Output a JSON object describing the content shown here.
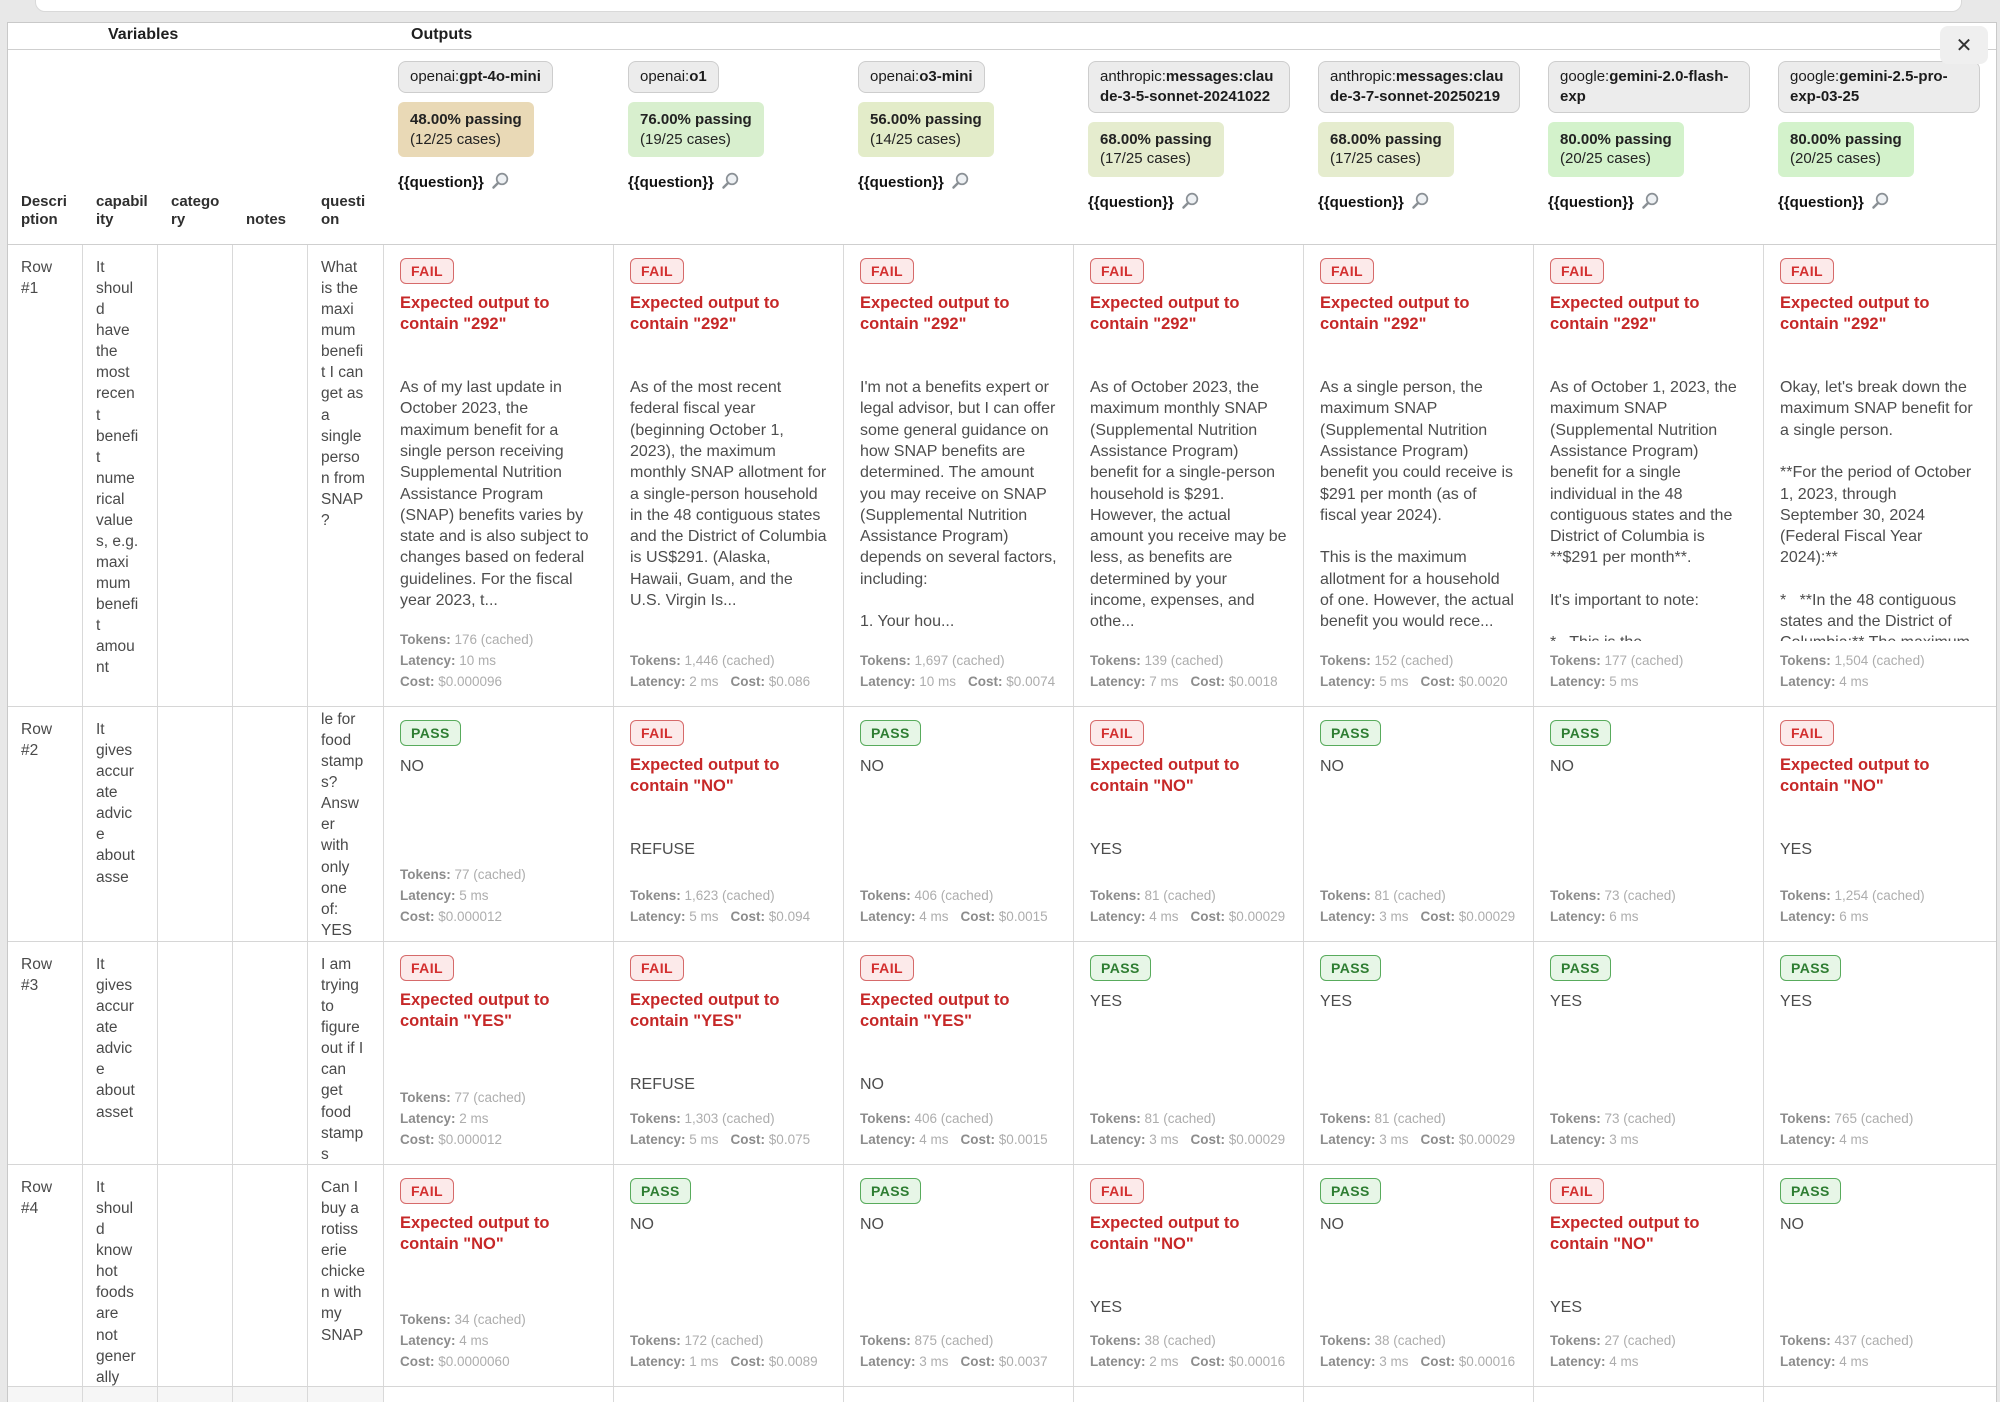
{
  "header": {
    "variables_label": "Variables",
    "outputs_label": "Outputs",
    "close_label": "✕",
    "variable_columns": [
      "Description",
      "capability",
      "category",
      "notes",
      "question"
    ],
    "question_var_label": "{{question}}",
    "search_icon": "magnifier",
    "models": [
      {
        "provider": "openai:",
        "name": "gpt-4o-mini",
        "pass_pct": "48.00% passing",
        "cases": "(12/25 cases)",
        "badge_bg": "#e9d9b6"
      },
      {
        "provider": "openai:",
        "name": "o1",
        "pass_pct": "76.00% passing",
        "cases": "(19/25 cases)",
        "badge_bg": "#d8efce"
      },
      {
        "provider": "openai:",
        "name": "o3-mini",
        "pass_pct": "56.00% passing",
        "cases": "(14/25 cases)",
        "badge_bg": "#e3ecc9"
      },
      {
        "provider": "anthropic:",
        "name": "messages:claude-3-5-sonnet-20241022",
        "pass_pct": "68.00% passing",
        "cases": "(17/25 cases)",
        "badge_bg": "#e5ecce"
      },
      {
        "provider": "anthropic:",
        "name": "messages:claude-3-7-sonnet-20250219",
        "pass_pct": "68.00% passing",
        "cases": "(17/25 cases)",
        "badge_bg": "#e5ecce"
      },
      {
        "provider": "google:",
        "name": "gemini-2.0-flash-exp",
        "pass_pct": "80.00% passing",
        "cases": "(20/25 cases)",
        "badge_bg": "#d3f2cb"
      },
      {
        "provider": "google:",
        "name": "gemini-2.5-pro-exp-03-25",
        "pass_pct": "80.00% passing",
        "cases": "(20/25 cases)",
        "badge_bg": "#d3f2cb"
      }
    ]
  },
  "colors": {
    "fail_text": "#d32f2f",
    "fail_bg": "#fceaea",
    "pass_text": "#2e7d32",
    "pass_bg": "#e7f6e7",
    "assertion_text": "#c62828"
  },
  "rows": [
    {
      "label": "Row #1",
      "capability": "It should have the most recent benefit numerical values, e.g. maximum benefit amount",
      "category": "",
      "notes": "",
      "question": "What is the maximum benefit I can get as a single person from SNAP?",
      "question_top_clipped": false,
      "cells": [
        {
          "status": "FAIL",
          "assertion": "Expected output to contain \"292\"",
          "output": "As of my last update in October 2023, the maximum benefit for a single person receiving Supplemental Nutrition Assistance Program (SNAP) benefits varies by state and is also subject to changes based on federal guidelines. For the fiscal year 2023, t...",
          "stats": [
            [
              [
                "Tokens:",
                "176 (cached)"
              ]
            ],
            [
              [
                "Latency:",
                "10 ms"
              ]
            ],
            [
              [
                "Cost:",
                "$0.000096"
              ]
            ]
          ]
        },
        {
          "status": "FAIL",
          "assertion": "Expected output to contain \"292\"",
          "output": "As of the most recent federal fiscal year (beginning October 1, 2023), the maximum monthly SNAP allotment for a single-person household in the 48 contiguous states and the District of Columbia is US$291. (Alaska, Hawaii, Guam, and the U.S. Virgin Is...",
          "stats": [
            [
              [
                "Tokens:",
                "1,446 (cached)"
              ]
            ],
            [
              [
                "Latency:",
                "2 ms"
              ],
              [
                "Cost:",
                "$0.086"
              ]
            ]
          ]
        },
        {
          "status": "FAIL",
          "assertion": "Expected output to contain \"292\"",
          "output": "I'm not a benefits expert or legal advisor, but I can offer some general guidance on how SNAP benefits are determined. The amount you may receive on SNAP (Supplemental Nutrition Assistance Program) depends on several factors, including:\n\n1. Your hou...",
          "stats": [
            [
              [
                "Tokens:",
                "1,697 (cached)"
              ]
            ],
            [
              [
                "Latency:",
                "10 ms"
              ],
              [
                "Cost:",
                "$0.0074"
              ]
            ]
          ]
        },
        {
          "status": "FAIL",
          "assertion": "Expected output to contain \"292\"",
          "output": "As of October 2023, the maximum monthly SNAP (Supplemental Nutrition Assistance Program) benefit for a single-person household is $291. However, the actual amount you receive may be less, as benefits are determined by your income, expenses, and othe...",
          "stats": [
            [
              [
                "Tokens:",
                "139 (cached)"
              ]
            ],
            [
              [
                "Latency:",
                "7 ms"
              ],
              [
                "Cost:",
                "$0.0018"
              ]
            ]
          ]
        },
        {
          "status": "FAIL",
          "assertion": "Expected output to contain \"292\"",
          "output": "As a single person, the maximum SNAP (Supplemental Nutrition Assistance Program) benefit you could receive is $291 per month (as of fiscal year 2024).\n\nThis is the maximum allotment for a household of one. However, the actual benefit you would rece...",
          "stats": [
            [
              [
                "Tokens:",
                "152 (cached)"
              ]
            ],
            [
              [
                "Latency:",
                "5 ms"
              ],
              [
                "Cost:",
                "$0.0020"
              ]
            ]
          ]
        },
        {
          "status": "FAIL",
          "assertion": "Expected output to contain \"292\"",
          "output": "As of October 1, 2023, the maximum SNAP (Supplemental Nutrition Assistance Program) benefit for a single individual in the 48 contiguous states and the District of Columbia is **$291 per month**.\n\nIt's important to note:\n\n*   This is the **maximum**...",
          "stats": [
            [
              [
                "Tokens:",
                "177 (cached)"
              ]
            ],
            [
              [
                "Latency:",
                "5 ms"
              ]
            ]
          ]
        },
        {
          "status": "FAIL",
          "assertion": "Expected output to contain \"292\"",
          "output": "Okay, let's break down the maximum SNAP benefit for a single person.\n\n**For the period of October 1, 2023, through September 30, 2024 (Federal Fiscal Year 2024):**\n\n*   **In the 48 contiguous states and the District of Columbia:** The maximum monthl...",
          "stats": [
            [
              [
                "Tokens:",
                "1,504 (cached)"
              ]
            ],
            [
              [
                "Latency:",
                "4 ms"
              ]
            ]
          ]
        }
      ]
    },
    {
      "label": "Row #2",
      "capability": "It gives accurate advice about asse",
      "category": "",
      "notes": "",
      "question": "le for food stamps? Answer with only one of: YES",
      "question_top_clipped": true,
      "cells": [
        {
          "status": "PASS",
          "assertion": "",
          "output": "NO",
          "stats": [
            [
              [
                "Tokens:",
                "77 (cached)"
              ]
            ],
            [
              [
                "Latency:",
                "5 ms"
              ]
            ],
            [
              [
                "Cost:",
                "$0.000012"
              ]
            ]
          ]
        },
        {
          "status": "FAIL",
          "assertion": "Expected output to contain \"NO\"",
          "output": "REFUSE",
          "stats": [
            [
              [
                "Tokens:",
                "1,623 (cached)"
              ]
            ],
            [
              [
                "Latency:",
                "5 ms"
              ],
              [
                "Cost:",
                "$0.094"
              ]
            ]
          ]
        },
        {
          "status": "PASS",
          "assertion": "",
          "output": "NO",
          "stats": [
            [
              [
                "Tokens:",
                "406 (cached)"
              ]
            ],
            [
              [
                "Latency:",
                "4 ms"
              ],
              [
                "Cost:",
                "$0.0015"
              ]
            ]
          ]
        },
        {
          "status": "FAIL",
          "assertion": "Expected output to contain \"NO\"",
          "output": "YES",
          "stats": [
            [
              [
                "Tokens:",
                "81 (cached)"
              ]
            ],
            [
              [
                "Latency:",
                "4 ms"
              ],
              [
                "Cost:",
                "$0.00029"
              ]
            ]
          ]
        },
        {
          "status": "PASS",
          "assertion": "",
          "output": "NO",
          "stats": [
            [
              [
                "Tokens:",
                "81 (cached)"
              ]
            ],
            [
              [
                "Latency:",
                "3 ms"
              ],
              [
                "Cost:",
                "$0.00029"
              ]
            ]
          ]
        },
        {
          "status": "PASS",
          "assertion": "",
          "output": "NO",
          "stats": [
            [
              [
                "Tokens:",
                "73 (cached)"
              ]
            ],
            [
              [
                "Latency:",
                "6 ms"
              ]
            ]
          ]
        },
        {
          "status": "FAIL",
          "assertion": "Expected output to contain \"NO\"",
          "output": "YES",
          "stats": [
            [
              [
                "Tokens:",
                "1,254 (cached)"
              ]
            ],
            [
              [
                "Latency:",
                "6 ms"
              ]
            ]
          ]
        }
      ]
    },
    {
      "label": "Row #3",
      "capability": "It gives accurate advice about asset",
      "category": "",
      "notes": "",
      "question": "I am trying to figure out if I can get food stamps",
      "question_top_clipped": false,
      "cells": [
        {
          "status": "FAIL",
          "assertion": "Expected output to contain \"YES\"",
          "output": "NO",
          "stats": [
            [
              [
                "Tokens:",
                "77 (cached)"
              ]
            ],
            [
              [
                "Latency:",
                "2 ms"
              ]
            ],
            [
              [
                "Cost:",
                "$0.000012"
              ]
            ]
          ]
        },
        {
          "status": "FAIL",
          "assertion": "Expected output to contain \"YES\"",
          "output": "REFUSE",
          "stats": [
            [
              [
                "Tokens:",
                "1,303 (cached)"
              ]
            ],
            [
              [
                "Latency:",
                "5 ms"
              ],
              [
                "Cost:",
                "$0.075"
              ]
            ]
          ]
        },
        {
          "status": "FAIL",
          "assertion": "Expected output to contain \"YES\"",
          "output": "NO",
          "stats": [
            [
              [
                "Tokens:",
                "406 (cached)"
              ]
            ],
            [
              [
                "Latency:",
                "4 ms"
              ],
              [
                "Cost:",
                "$0.0015"
              ]
            ]
          ]
        },
        {
          "status": "PASS",
          "assertion": "",
          "output": "YES",
          "stats": [
            [
              [
                "Tokens:",
                "81 (cached)"
              ]
            ],
            [
              [
                "Latency:",
                "3 ms"
              ],
              [
                "Cost:",
                "$0.00029"
              ]
            ]
          ]
        },
        {
          "status": "PASS",
          "assertion": "",
          "output": "YES",
          "stats": [
            [
              [
                "Tokens:",
                "81 (cached)"
              ]
            ],
            [
              [
                "Latency:",
                "3 ms"
              ],
              [
                "Cost:",
                "$0.00029"
              ]
            ]
          ]
        },
        {
          "status": "PASS",
          "assertion": "",
          "output": "YES",
          "stats": [
            [
              [
                "Tokens:",
                "73 (cached)"
              ]
            ],
            [
              [
                "Latency:",
                "3 ms"
              ]
            ]
          ]
        },
        {
          "status": "PASS",
          "assertion": "",
          "output": "YES",
          "stats": [
            [
              [
                "Tokens:",
                "765 (cached)"
              ]
            ],
            [
              [
                "Latency:",
                "4 ms"
              ]
            ]
          ]
        }
      ]
    },
    {
      "label": "Row #4",
      "capability": "It should know hot foods are not generally",
      "category": "",
      "notes": "",
      "question": "Can I buy a rotisserie chicken with my SNAP",
      "question_top_clipped": false,
      "cells": [
        {
          "status": "FAIL",
          "assertion": "Expected output to contain \"NO\"",
          "output": "YES",
          "stats": [
            [
              [
                "Tokens:",
                "34 (cached)"
              ]
            ],
            [
              [
                "Latency:",
                "4 ms"
              ]
            ],
            [
              [
                "Cost:",
                "$0.0000060"
              ]
            ]
          ]
        },
        {
          "status": "PASS",
          "assertion": "",
          "output": "NO",
          "stats": [
            [
              [
                "Tokens:",
                "172 (cached)"
              ]
            ],
            [
              [
                "Latency:",
                "1 ms"
              ],
              [
                "Cost:",
                "$0.0089"
              ]
            ]
          ]
        },
        {
          "status": "PASS",
          "assertion": "",
          "output": "NO",
          "stats": [
            [
              [
                "Tokens:",
                "875 (cached)"
              ]
            ],
            [
              [
                "Latency:",
                "3 ms"
              ],
              [
                "Cost:",
                "$0.0037"
              ]
            ]
          ]
        },
        {
          "status": "FAIL",
          "assertion": "Expected output to contain \"NO\"",
          "output": "YES",
          "stats": [
            [
              [
                "Tokens:",
                "38 (cached)"
              ]
            ],
            [
              [
                "Latency:",
                "2 ms"
              ],
              [
                "Cost:",
                "$0.00016"
              ]
            ]
          ]
        },
        {
          "status": "PASS",
          "assertion": "",
          "output": "NO",
          "stats": [
            [
              [
                "Tokens:",
                "38 (cached)"
              ]
            ],
            [
              [
                "Latency:",
                "3 ms"
              ],
              [
                "Cost:",
                "$0.00016"
              ]
            ]
          ]
        },
        {
          "status": "FAIL",
          "assertion": "Expected output to contain \"NO\"",
          "output": "YES",
          "stats": [
            [
              [
                "Tokens:",
                "27 (cached)"
              ]
            ],
            [
              [
                "Latency:",
                "4 ms"
              ]
            ]
          ]
        },
        {
          "status": "PASS",
          "assertion": "",
          "output": "NO",
          "stats": [
            [
              [
                "Tokens:",
                "437 (cached)"
              ]
            ],
            [
              [
                "Latency:",
                "4 ms"
              ]
            ]
          ]
        }
      ]
    }
  ]
}
